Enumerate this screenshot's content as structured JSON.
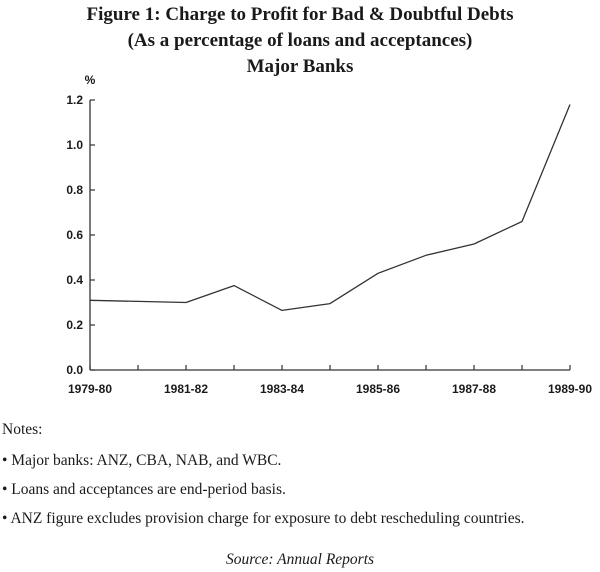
{
  "chart_data": {
    "type": "line",
    "title": "Figure 1: Charge to Profit for Bad & Doubtful Debts",
    "subtitle": "(As a percentage of loans and acceptances)",
    "subtitle2": "Major Banks",
    "ylabel": "%",
    "xlabel": "",
    "ylim": [
      0,
      1.2
    ],
    "yticks": [
      "0.0",
      "0.2",
      "0.4",
      "0.6",
      "0.8",
      "1.0",
      "1.2"
    ],
    "categories": [
      "1979-80",
      "1980-81",
      "1981-82",
      "1982-83",
      "1983-84",
      "1984-85",
      "1985-86",
      "1986-87",
      "1987-88",
      "1988-89",
      "1989-90"
    ],
    "xtick_labels": [
      "1979-80",
      "1981-82",
      "1983-84",
      "1985-86",
      "1987-88",
      "1989-90"
    ],
    "series": [
      {
        "name": "Major Banks",
        "values": [
          0.31,
          0.305,
          0.3,
          0.375,
          0.265,
          0.295,
          0.43,
          0.51,
          0.56,
          0.66,
          1.18
        ]
      }
    ],
    "grid": false,
    "line_color": "#333333"
  },
  "notes": {
    "heading": "Notes:",
    "items": [
      "• Major banks: ANZ, CBA, NAB, and WBC.",
      "• Loans and acceptances are end-period basis.",
      "• ANZ figure excludes provision charge for exposure to debt rescheduling countries."
    ]
  },
  "source": "Source: Annual Reports"
}
